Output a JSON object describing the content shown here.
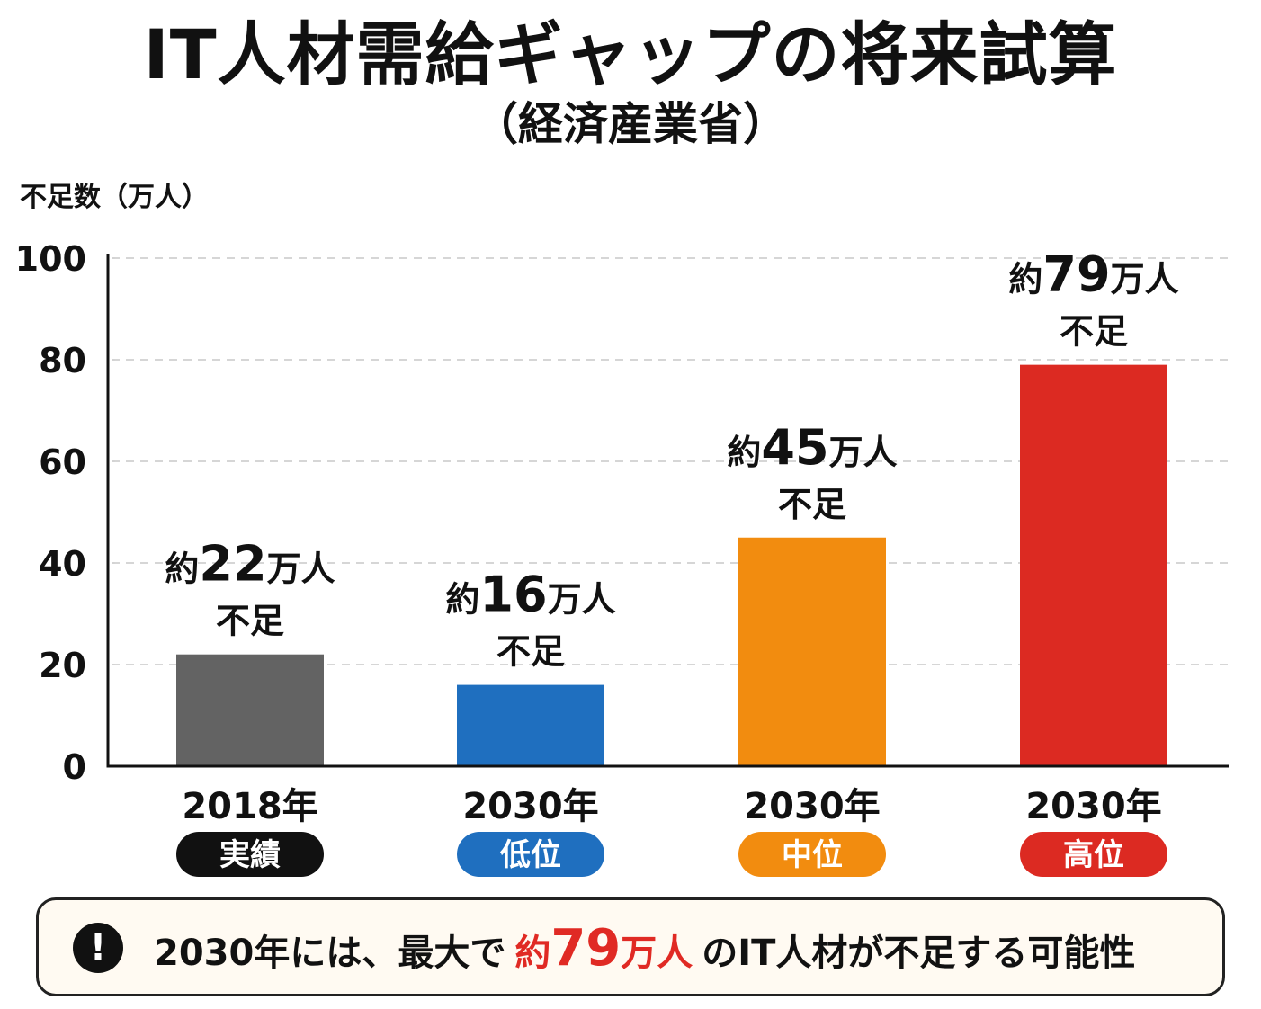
{
  "title": "IT人材需給ギャップの将来試算",
  "subtitle": "（経済産業省）",
  "callout": {
    "icon": "exclamation-icon",
    "icon_glyph": "!",
    "text_before": "2030年には、最大で",
    "highlight_prefix": "約",
    "highlight_number": "79",
    "highlight_suffix": "万人",
    "text_after": "のIT人材が不足する可能性"
  },
  "chart_data": {
    "type": "bar",
    "title": "IT人材需給ギャップの将来試算",
    "subtitle": "（経済産業省）",
    "ylabel": "不足数（万人）",
    "xlabel": "",
    "ylim": [
      0,
      100
    ],
    "yticks": [
      "0",
      "20",
      "40",
      "60",
      "80",
      "100"
    ],
    "grid": true,
    "categories": [
      "2018年",
      "2030年",
      "2030年",
      "2030年"
    ],
    "category_badges": [
      "実績",
      "低位",
      "中位",
      "高位"
    ],
    "values": [
      22,
      16,
      45,
      79
    ],
    "data_labels": [
      {
        "prefix": "約",
        "number": "22",
        "suffix": "万人",
        "line2": "不足"
      },
      {
        "prefix": "約",
        "number": "16",
        "suffix": "万人",
        "line2": "不足"
      },
      {
        "prefix": "約",
        "number": "45",
        "suffix": "万人",
        "line2": "不足"
      },
      {
        "prefix": "約",
        "number": "79",
        "suffix": "万人",
        "line2": "不足"
      }
    ],
    "colors": [
      "#636363",
      "#1f6fbf",
      "#f28c0f",
      "#dc2a22"
    ],
    "badge_colors": [
      "#111111",
      "#1f6fbf",
      "#f28c0f",
      "#dc2a22"
    ]
  }
}
